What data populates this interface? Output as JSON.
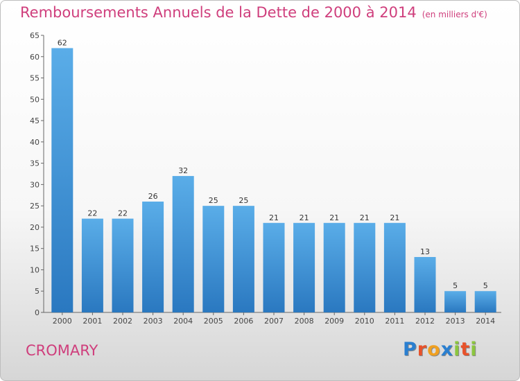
{
  "title": "Remboursements Annuels de la Dette de 2000 à 2014",
  "unit": "(en milliers d'€)",
  "commune": "CROMARY",
  "logo": {
    "letters": [
      "P",
      "r",
      "o",
      "x",
      "i",
      "t",
      "i"
    ],
    "colors": [
      "#2a7fd0",
      "#e8522a",
      "#f0a020",
      "#2a7fd0",
      "#8cc63f",
      "#e8522a",
      "#8cc63f"
    ]
  },
  "chart_data": {
    "type": "bar",
    "title": "Remboursements Annuels de la Dette de 2000 à 2014",
    "categories": [
      "2000",
      "2001",
      "2002",
      "2003",
      "2004",
      "2005",
      "2006",
      "2007",
      "2008",
      "2009",
      "2010",
      "2011",
      "2012",
      "2013",
      "2014"
    ],
    "values": [
      62,
      22,
      22,
      26,
      32,
      25,
      25,
      21,
      21,
      21,
      21,
      21,
      13,
      5,
      5
    ],
    "ylim": [
      0,
      65
    ],
    "yticks": [
      0,
      5,
      10,
      15,
      20,
      25,
      30,
      35,
      40,
      45,
      50,
      55,
      60,
      65
    ],
    "grid": false,
    "bar_color": "#4a9de0"
  }
}
